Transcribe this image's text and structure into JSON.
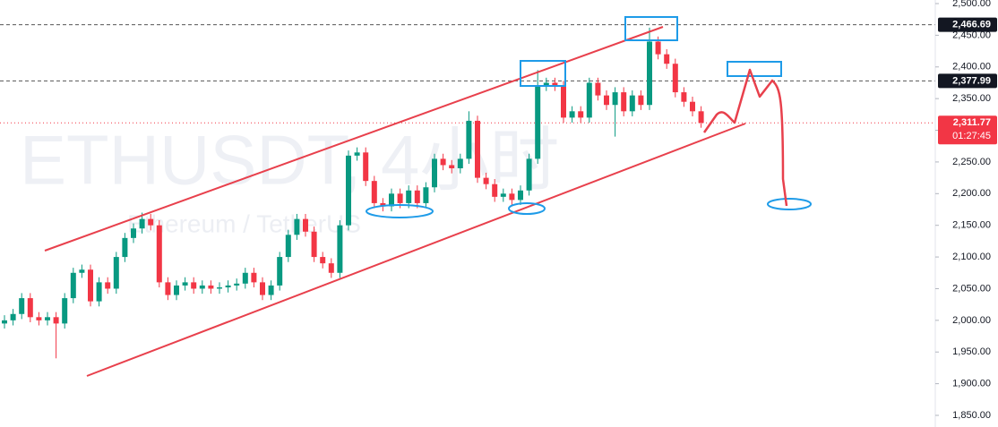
{
  "chart_data": {
    "type": "candlestick",
    "title": "ETHUSDT, 4小时",
    "subtitle": "Ethereum / TetherUS",
    "up_color": "#089981",
    "down_color": "#f23645",
    "ylim": [
      1850,
      2500
    ],
    "yticks": [
      {
        "value": 1850,
        "label": "1,850.00"
      },
      {
        "value": 1900,
        "label": "1,900.00"
      },
      {
        "value": 1950,
        "label": "1,950.00"
      },
      {
        "value": 2000,
        "label": "2,000.00"
      },
      {
        "value": 2050,
        "label": "2,050.00"
      },
      {
        "value": 2100,
        "label": "2,100.00"
      },
      {
        "value": 2150,
        "label": "2,150.00"
      },
      {
        "value": 2200,
        "label": "2,200.00"
      },
      {
        "value": 2250,
        "label": "2,250.00"
      },
      {
        "value": 2300,
        "label": "2,300.00"
      },
      {
        "value": 2350,
        "label": "2,350.00"
      },
      {
        "value": 2400,
        "label": "2,400.00"
      },
      {
        "value": 2450,
        "label": "2,450.00"
      },
      {
        "value": 2500,
        "label": "2,500.00"
      }
    ],
    "price_lines": [
      {
        "value": 2466.69,
        "label": "2,466.69",
        "color": "#131722"
      },
      {
        "value": 2377.99,
        "label": "2,377.99",
        "color": "#131722"
      },
      {
        "value": 2311.77,
        "label": "2,311.77",
        "color": "#f23645"
      }
    ],
    "countdown": "01:27:45",
    "open": [
      1995,
      2000,
      2010,
      2035,
      2005,
      2000,
      2005,
      1995,
      2035,
      2075,
      2080,
      2030,
      2060,
      2050,
      2100,
      2130,
      2145,
      2160,
      2150,
      2060,
      2040,
      2055,
      2060,
      2050,
      2055,
      2050,
      2052,
      2055,
      2058,
      2075,
      2060,
      2040,
      2055,
      2100,
      2135,
      2160,
      2140,
      2100,
      2090,
      2075,
      2150,
      2260,
      2265,
      2220,
      2185,
      2180,
      2200,
      2185,
      2205,
      2185,
      2210,
      2255,
      2245,
      2240,
      2255,
      2315,
      2225,
      2215,
      2195,
      2200,
      2190,
      2205,
      2255,
      2370,
      2375,
      2370,
      2320,
      2330,
      2320,
      2375,
      2355,
      2340,
      2360,
      2330,
      2355,
      2340,
      2440,
      2420,
      2405,
      2360,
      2345,
      2330
    ],
    "high": [
      2008,
      2018,
      2043,
      2043,
      2013,
      2013,
      2013,
      2043,
      2083,
      2088,
      2088,
      2068,
      2068,
      2108,
      2138,
      2153,
      2170,
      2168,
      2158,
      2068,
      2063,
      2068,
      2068,
      2063,
      2063,
      2060,
      2063,
      2066,
      2083,
      2083,
      2068,
      2063,
      2108,
      2143,
      2168,
      2168,
      2148,
      2108,
      2098,
      2158,
      2268,
      2273,
      2273,
      2228,
      2193,
      2208,
      2208,
      2213,
      2213,
      2218,
      2263,
      2263,
      2253,
      2263,
      2330,
      2323,
      2233,
      2223,
      2208,
      2208,
      2213,
      2263,
      2395,
      2383,
      2383,
      2378,
      2338,
      2338,
      2383,
      2383,
      2363,
      2368,
      2368,
      2363,
      2363,
      2462,
      2448,
      2428,
      2413,
      2368,
      2353,
      2338
    ],
    "low": [
      1987,
      1992,
      2002,
      1997,
      1992,
      1992,
      1940,
      1987,
      2027,
      2067,
      2022,
      2022,
      2042,
      2042,
      2092,
      2122,
      2137,
      2142,
      2052,
      2032,
      2032,
      2047,
      2042,
      2042,
      2042,
      2042,
      2044,
      2047,
      2050,
      2052,
      2032,
      2032,
      2047,
      2092,
      2127,
      2132,
      2092,
      2082,
      2067,
      2067,
      2142,
      2252,
      2212,
      2177,
      2172,
      2172,
      2177,
      2177,
      2177,
      2177,
      2202,
      2237,
      2232,
      2232,
      2247,
      2217,
      2207,
      2187,
      2187,
      2182,
      2182,
      2197,
      2247,
      2362,
      2362,
      2312,
      2312,
      2312,
      2312,
      2347,
      2332,
      2290,
      2322,
      2322,
      2332,
      2332,
      2412,
      2397,
      2352,
      2337,
      2322,
      2304
    ],
    "close": [
      2000,
      2010,
      2035,
      2005,
      2000,
      2005,
      1995,
      2035,
      2075,
      2080,
      2030,
      2060,
      2050,
      2100,
      2130,
      2145,
      2160,
      2150,
      2060,
      2040,
      2055,
      2060,
      2050,
      2055,
      2050,
      2052,
      2055,
      2058,
      2075,
      2060,
      2040,
      2055,
      2100,
      2135,
      2160,
      2140,
      2100,
      2090,
      2075,
      2150,
      2260,
      2265,
      2220,
      2185,
      2180,
      2200,
      2185,
      2205,
      2185,
      2210,
      2255,
      2245,
      2240,
      2255,
      2315,
      2225,
      2215,
      2195,
      2200,
      2190,
      2205,
      2255,
      2370,
      2375,
      2370,
      2320,
      2330,
      2320,
      2375,
      2355,
      2340,
      2360,
      2330,
      2355,
      2340,
      2440,
      2420,
      2405,
      2360,
      2345,
      2330,
      2311.77
    ]
  }
}
